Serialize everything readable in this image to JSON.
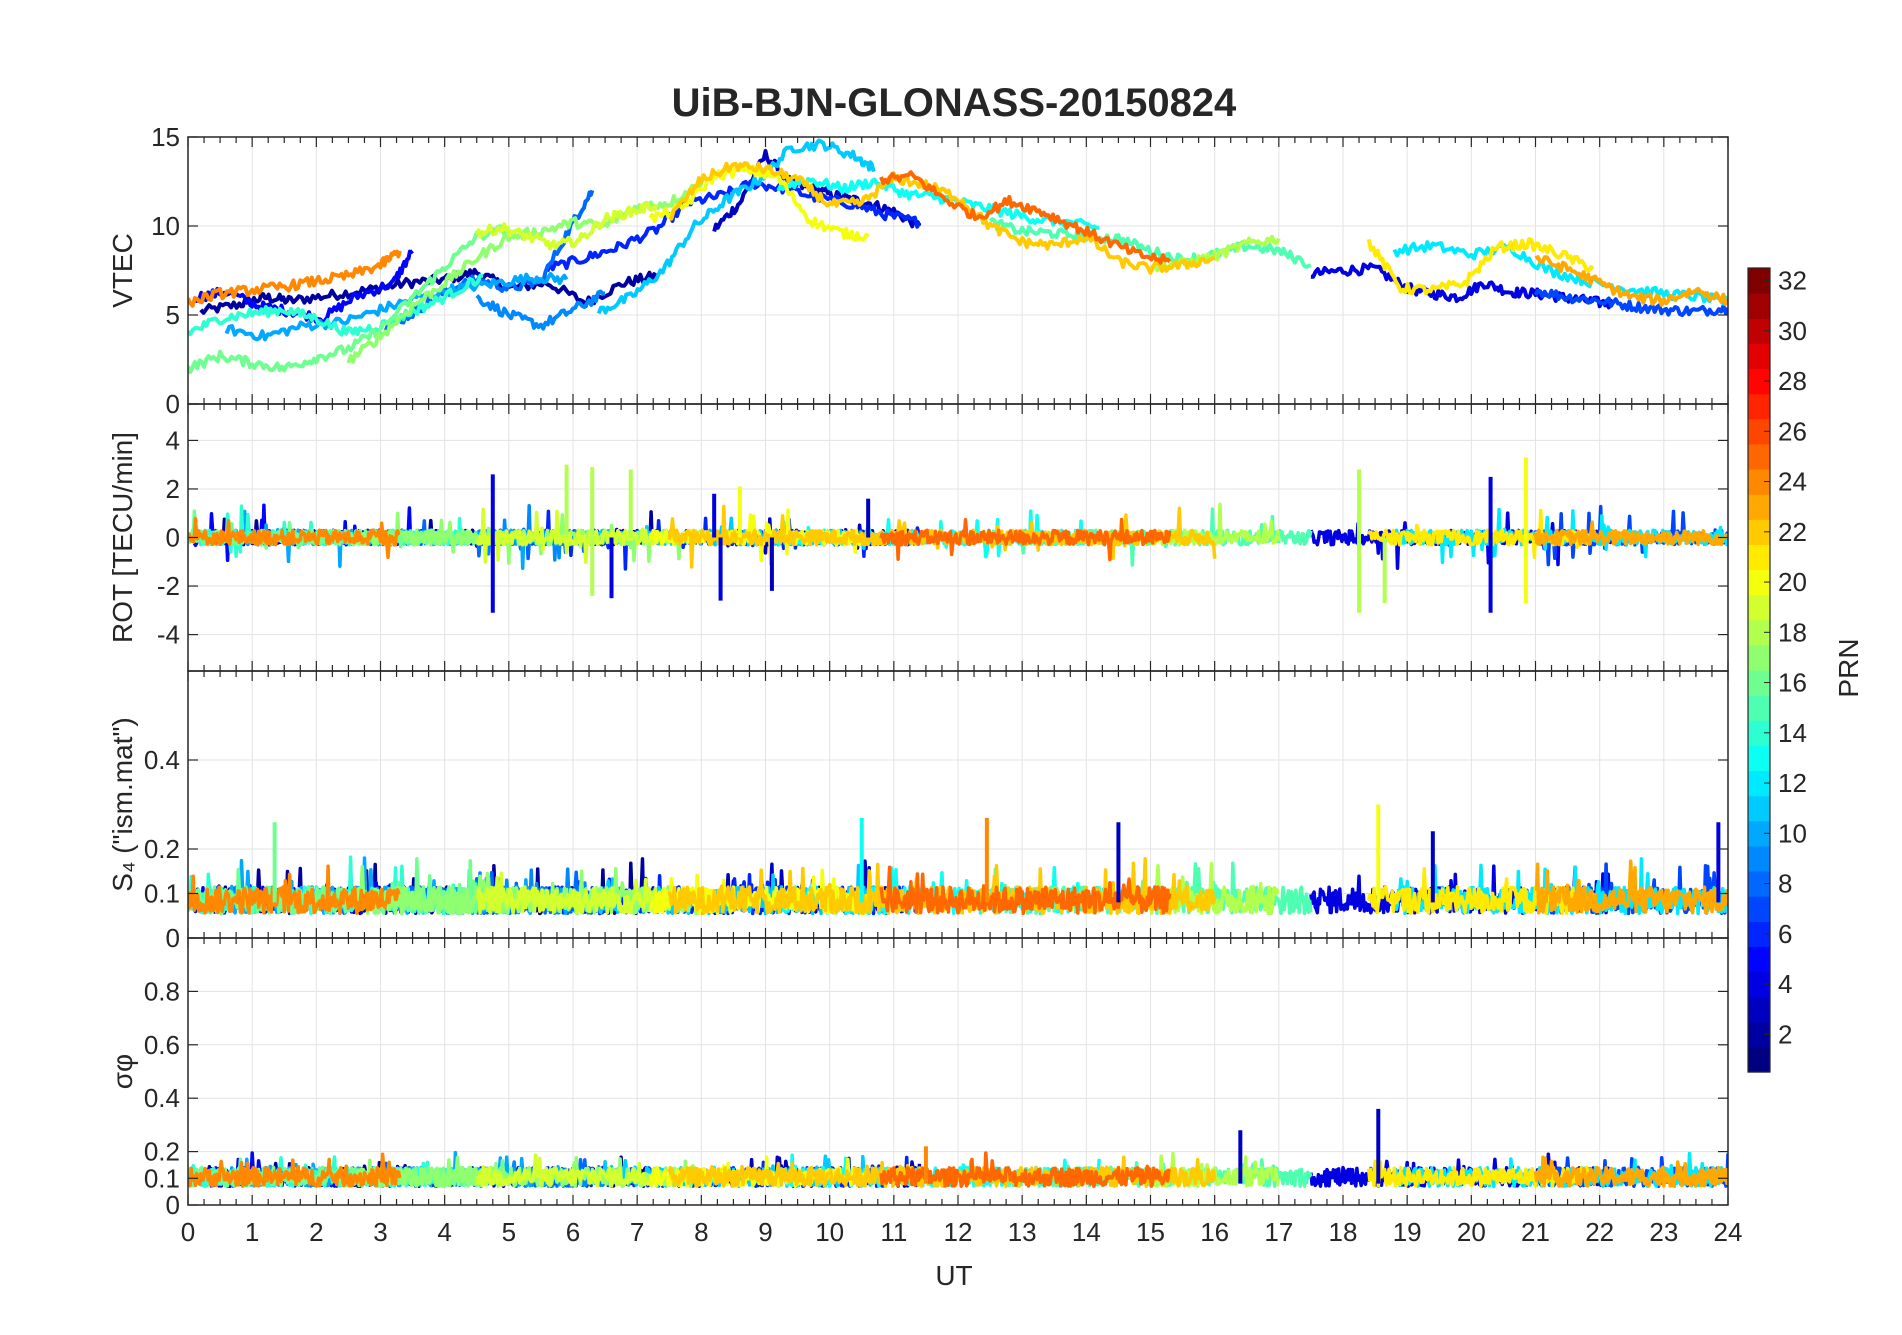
{
  "chart_data": {
    "type": "line",
    "title": "UiB-BJN-GLONASS-20150824",
    "xlabel": "UT",
    "xlim": [
      0,
      24
    ],
    "xticks": [
      0,
      1,
      2,
      3,
      4,
      5,
      6,
      7,
      8,
      9,
      10,
      11,
      12,
      13,
      14,
      15,
      16,
      17,
      18,
      19,
      20,
      21,
      22,
      23,
      24
    ],
    "grid": true,
    "colorbar": {
      "label": "PRN",
      "colormap": "jet",
      "limits": [
        1,
        32
      ],
      "ticks": [
        2,
        4,
        6,
        8,
        10,
        12,
        14,
        16,
        18,
        20,
        22,
        24,
        26,
        28,
        30,
        32
      ]
    },
    "panels": [
      {
        "id": "vtec",
        "ylabel": "VTEC",
        "ylim": [
          0,
          15
        ],
        "yticks": [
          0,
          5,
          10,
          15
        ],
        "series": [
          {
            "prn": 2,
            "x": [
              0.2,
              0.8,
              1.2,
              1.6,
              2.2,
              2.8,
              3.4,
              4.0,
              4.5,
              5.0,
              5.6,
              6.2,
              6.8,
              7.3
            ],
            "y": [
              5.2,
              5.6,
              6.0,
              5.8,
              6.1,
              6.4,
              6.8,
              7.0,
              7.4,
              6.5,
              6.8,
              5.7,
              6.8,
              7.2
            ]
          },
          {
            "prn": 3,
            "x": [
              8.2,
              8.6,
              9.0,
              9.4,
              9.8,
              10.2,
              10.6,
              11.0,
              11.4
            ],
            "y": [
              9.8,
              11.3,
              14.0,
              12.4,
              12.0,
              11.6,
              11.3,
              10.8,
              10.0
            ]
          },
          {
            "prn": 4,
            "x": [
              17.5,
              18.0,
              18.5,
              19.0,
              19.4,
              19.8,
              20.2,
              20.6,
              21.0,
              21.4,
              21.8,
              22.2
            ],
            "y": [
              7.3,
              7.5,
              7.6,
              6.5,
              6.2,
              6.0,
              6.8,
              6.3,
              6.2,
              6.0,
              5.8,
              5.6
            ]
          },
          {
            "prn": 5,
            "x": [
              0.1,
              0.6,
              1.1,
              1.6,
              2.1,
              2.6,
              3.2,
              3.5
            ],
            "y": [
              6.0,
              6.3,
              5.5,
              5.2,
              4.8,
              6.0,
              6.8,
              8.6
            ]
          },
          {
            "prn": 6,
            "x": [
              5.6,
              6.2,
              6.7,
              7.3,
              7.8,
              8.3,
              8.8,
              9.3,
              9.8,
              10.4,
              10.9,
              11.4
            ],
            "y": [
              7.6,
              8.2,
              8.8,
              9.8,
              11.3,
              11.7,
              12.4,
              12.1,
              11.6,
              11.2,
              10.6,
              10.2
            ]
          },
          {
            "prn": 7,
            "x": [
              21.0,
              21.5,
              22.0,
              22.5,
              23.0,
              23.5,
              24.0
            ],
            "y": [
              6.4,
              6.0,
              5.8,
              5.5,
              5.3,
              5.2,
              5.4
            ]
          },
          {
            "prn": 8,
            "x": [
              3.0,
              3.5,
              4.0,
              4.5,
              5.0,
              5.5,
              6.0,
              6.3
            ],
            "y": [
              4.1,
              5.1,
              6.3,
              7.0,
              6.5,
              6.9,
              10.2,
              12.0
            ]
          },
          {
            "prn": 9,
            "x": [
              4.5,
              5.0,
              5.5,
              6.0,
              6.5
            ],
            "y": [
              6.0,
              5.0,
              4.4,
              5.3,
              6.2
            ]
          },
          {
            "prn": 10,
            "x": [
              0.6,
              1.2,
              1.8,
              2.4,
              3.0,
              3.6,
              4.2,
              4.8,
              5.4,
              5.9
            ],
            "y": [
              4.2,
              3.8,
              4.4,
              4.6,
              5.3,
              6.0,
              6.5,
              6.8,
              7.1,
              7.0
            ]
          },
          {
            "prn": 11,
            "x": [
              6.4,
              6.9,
              7.4,
              7.9,
              8.4,
              8.9,
              9.4,
              9.9,
              10.4,
              10.7
            ],
            "y": [
              5.2,
              6.0,
              7.5,
              10.0,
              11.5,
              12.6,
              14.4,
              14.6,
              13.9,
              13.2
            ]
          },
          {
            "prn": 12,
            "x": [
              18.8,
              19.4,
              20.0,
              20.6,
              21.2,
              21.8,
              22.4,
              23.0,
              23.6,
              24.0
            ],
            "y": [
              8.6,
              8.9,
              8.4,
              8.8,
              7.5,
              6.9,
              6.5,
              6.2,
              6.0,
              5.7
            ]
          },
          {
            "prn": 13,
            "x": [
              9.2,
              9.7,
              10.2,
              10.7,
              11.2,
              11.7,
              12.2,
              12.7,
              13.2,
              13.7,
              14.2
            ],
            "y": [
              12.2,
              12.6,
              12.1,
              12.5,
              11.8,
              11.6,
              11.2,
              10.8,
              10.4,
              10.2,
              9.9
            ]
          },
          {
            "prn": 14,
            "x": [
              0.0,
              0.5,
              1.0,
              1.5,
              2.0,
              2.5,
              3.0,
              3.5,
              4.0,
              4.6
            ],
            "y": [
              4.0,
              4.8,
              5.1,
              5.3,
              4.8,
              4.0,
              4.4,
              5.2,
              6.0,
              7.2
            ]
          },
          {
            "prn": 15,
            "x": [
              12.5,
              13.0,
              13.5,
              14.0,
              14.5,
              15.0,
              15.5,
              16.0,
              16.5,
              17.0,
              17.5
            ],
            "y": [
              10.2,
              9.7,
              9.6,
              9.4,
              9.3,
              8.6,
              8.1,
              8.4,
              8.9,
              8.6,
              7.8
            ]
          },
          {
            "prn": 16,
            "x": [
              0.0,
              0.5,
              1.0,
              1.5,
              2.0,
              2.5,
              3.0,
              3.6,
              4.0,
              4.5,
              5.0
            ],
            "y": [
              2.0,
              2.7,
              2.3,
              2.0,
              2.6,
              3.1,
              4.2,
              6.3,
              7.7,
              9.4,
              9.9
            ]
          },
          {
            "prn": 17,
            "x": [
              2.5,
              3.0,
              3.5,
              4.0,
              4.5,
              5.0,
              5.5,
              6.0,
              6.5,
              7.0,
              7.5,
              8.0
            ],
            "y": [
              2.4,
              3.8,
              5.5,
              6.8,
              8.2,
              9.4,
              9.7,
              10.2,
              10.0,
              11.1,
              11.3,
              12.4
            ]
          },
          {
            "prn": 18,
            "x": [
              15.0,
              15.5,
              16.0,
              16.5,
              17.0
            ],
            "y": [
              7.7,
              7.9,
              8.3,
              9.0,
              9.3
            ]
          },
          {
            "prn": 19,
            "x": [
              4.5,
              4.9,
              5.3,
              5.7,
              6.1,
              6.5,
              6.9,
              7.3
            ],
            "y": [
              9.6,
              9.9,
              9.4,
              8.9,
              9.2,
              10.4,
              10.8,
              11.2
            ]
          },
          {
            "prn": 20,
            "x": [
              7.2,
              7.7,
              8.2,
              8.7,
              9.2,
              9.7,
              10.2,
              10.6
            ],
            "y": [
              10.4,
              11.0,
              12.8,
              13.2,
              12.7,
              10.3,
              9.6,
              9.4
            ]
          },
          {
            "prn": 21,
            "x": [
              18.4,
              18.9,
              19.4,
              19.9,
              20.4,
              20.9,
              21.4,
              21.9
            ],
            "y": [
              9.1,
              6.5,
              6.4,
              6.8,
              8.8,
              9.0,
              8.4,
              7.6
            ]
          },
          {
            "prn": 22,
            "x": [
              7.5,
              8.0,
              8.5,
              9.0,
              9.5,
              10.0,
              10.5,
              11.0,
              11.5,
              12.0,
              12.5,
              13.0,
              13.5,
              14.0,
              14.5,
              15.0,
              15.5,
              16.0
            ],
            "y": [
              10.4,
              12.6,
              13.4,
              13.2,
              12.6,
              11.2,
              11.3,
              12.7,
              12.3,
              11.6,
              10.0,
              9.1,
              8.9,
              9.4,
              8.0,
              7.6,
              7.8,
              8.2
            ]
          },
          {
            "prn": 23,
            "x": [
              21.0,
              21.5,
              22.0,
              22.5,
              23.0,
              23.5,
              24.0
            ],
            "y": [
              8.2,
              7.6,
              6.8,
              6.0,
              5.8,
              6.4,
              5.8
            ]
          },
          {
            "prn": 24,
            "x": [
              0.0,
              0.5,
              1.0,
              1.5,
              2.0,
              2.5,
              3.0,
              3.3
            ],
            "y": [
              5.7,
              6.2,
              6.4,
              6.6,
              6.9,
              7.2,
              7.8,
              8.6
            ]
          },
          {
            "prn": 25,
            "x": [
              10.8,
              11.3,
              11.8,
              12.3,
              12.8,
              13.3,
              13.8,
              14.3,
              14.8,
              15.3
            ],
            "y": [
              12.6,
              12.8,
              11.5,
              10.5,
              11.4,
              10.8,
              10.0,
              9.2,
              8.4,
              8.0
            ]
          }
        ]
      },
      {
        "id": "rot",
        "ylabel": "ROT [TECU/min]",
        "ylim": [
          -5.5,
          5.5
        ],
        "yticks": [
          -4,
          -2,
          0,
          2,
          4
        ]
      },
      {
        "id": "s4",
        "ylabel": "S₄ (\"ism.mat\")",
        "ylim": [
          0,
          0.6
        ],
        "yticks": [
          0,
          0.1,
          0.2,
          0.4
        ]
      },
      {
        "id": "sigma",
        "ylabel": "σφ",
        "ylim": [
          0,
          1
        ],
        "yticks": [
          0,
          0.1,
          0.2,
          0.4,
          0.6,
          0.8
        ]
      }
    ],
    "notable_spikes": {
      "rot": [
        {
          "x": 4.75,
          "y": 2.6,
          "prn": 4
        },
        {
          "x": 4.75,
          "y": -3.1,
          "prn": 4
        },
        {
          "x": 5.9,
          "y": 3.0,
          "prn": 18
        },
        {
          "x": 6.3,
          "y": 2.9,
          "prn": 18
        },
        {
          "x": 6.3,
          "y": -2.4,
          "prn": 18
        },
        {
          "x": 6.6,
          "y": -2.5,
          "prn": 4
        },
        {
          "x": 6.9,
          "y": 2.8,
          "prn": 18
        },
        {
          "x": 8.2,
          "y": 1.8,
          "prn": 4
        },
        {
          "x": 8.3,
          "y": -2.6,
          "prn": 4
        },
        {
          "x": 8.6,
          "y": 2.1,
          "prn": 20
        },
        {
          "x": 9.1,
          "y": -2.2,
          "prn": 3
        },
        {
          "x": 10.6,
          "y": 1.6,
          "prn": 3
        },
        {
          "x": 18.25,
          "y": 2.8,
          "prn": 18
        },
        {
          "x": 18.25,
          "y": -3.1,
          "prn": 18
        },
        {
          "x": 18.65,
          "y": -2.7,
          "prn": 18
        },
        {
          "x": 20.3,
          "y": 2.5,
          "prn": 4
        },
        {
          "x": 20.3,
          "y": -3.1,
          "prn": 4
        },
        {
          "x": 20.85,
          "y": 3.3,
          "prn": 20
        },
        {
          "x": 20.85,
          "y": -2.7,
          "prn": 20
        }
      ],
      "s4": [
        {
          "x": 1.35,
          "y": 0.26,
          "prn": 16
        },
        {
          "x": 10.5,
          "y": 0.27,
          "prn": 13
        },
        {
          "x": 12.45,
          "y": 0.27,
          "prn": 24
        },
        {
          "x": 14.5,
          "y": 0.26,
          "prn": 3
        },
        {
          "x": 18.55,
          "y": 0.3,
          "prn": 20
        },
        {
          "x": 19.4,
          "y": 0.24,
          "prn": 3
        },
        {
          "x": 23.85,
          "y": 0.26,
          "prn": 4
        }
      ],
      "sigma": [
        {
          "x": 18.55,
          "y": 0.36,
          "prn": 3
        },
        {
          "x": 11.5,
          "y": 0.22,
          "prn": 24
        },
        {
          "x": 16.4,
          "y": 0.28,
          "prn": 3
        }
      ]
    }
  }
}
